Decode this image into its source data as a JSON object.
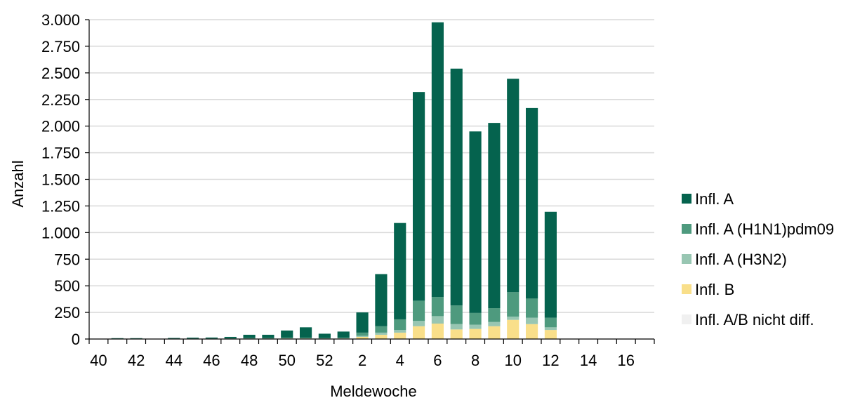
{
  "chart_data": {
    "type": "bar",
    "stacked": true,
    "title": "",
    "xlabel": "Meldewoche",
    "ylabel": "Anzahl",
    "ylim": [
      0,
      3000
    ],
    "yticks": [
      0,
      250,
      500,
      750,
      1000,
      1250,
      1500,
      1750,
      2000,
      2250,
      2500,
      2750,
      3000
    ],
    "ytick_labels": [
      "0",
      "250",
      "500",
      "750",
      "1.000",
      "1.250",
      "1.500",
      "1.750",
      "2.000",
      "2.250",
      "2.500",
      "2.750",
      "3.000"
    ],
    "grid": true,
    "legend_position": "right",
    "categories": [
      "40",
      "41",
      "42",
      "43",
      "44",
      "45",
      "46",
      "47",
      "48",
      "49",
      "50",
      "51",
      "52",
      "1",
      "2",
      "3",
      "4",
      "5",
      "6",
      "7",
      "8",
      "9",
      "10",
      "11",
      "12",
      "13",
      "14",
      "15",
      "16",
      "17"
    ],
    "xtick_labels": [
      "40",
      "",
      "42",
      "",
      "44",
      "",
      "46",
      "",
      "48",
      "",
      "50",
      "",
      "52",
      "",
      "2",
      "",
      "4",
      "",
      "6",
      "",
      "8",
      "",
      "10",
      "",
      "12",
      "",
      "14",
      "",
      "16",
      ""
    ],
    "series": [
      {
        "name": "Infl. A/B nicht diff.",
        "color": "#f0f0f0",
        "values": [
          0,
          0,
          0,
          0,
          0,
          0,
          0,
          0,
          0,
          0,
          0,
          0,
          0,
          0,
          0,
          0,
          0,
          0,
          0,
          0,
          0,
          0,
          0,
          0,
          0,
          0,
          0,
          0,
          0,
          0
        ]
      },
      {
        "name": "Infl. B",
        "color": "#f9df8a",
        "values": [
          0,
          2,
          2,
          0,
          2,
          2,
          2,
          3,
          4,
          4,
          5,
          5,
          4,
          5,
          20,
          40,
          60,
          120,
          145,
          90,
          95,
          120,
          180,
          140,
          85,
          0,
          0,
          0,
          0,
          0
        ]
      },
      {
        "name": "Infl. A (H3N2)",
        "color": "#98c6b2",
        "values": [
          0,
          1,
          1,
          0,
          1,
          1,
          1,
          1,
          1,
          1,
          2,
          2,
          2,
          2,
          10,
          20,
          25,
          50,
          70,
          50,
          40,
          40,
          30,
          60,
          25,
          0,
          0,
          0,
          0,
          0
        ]
      },
      {
        "name": "Infl. A (H1N1)pdm09",
        "color": "#4e9a7e",
        "values": [
          0,
          1,
          1,
          0,
          1,
          2,
          2,
          3,
          4,
          4,
          5,
          6,
          4,
          5,
          30,
          60,
          100,
          190,
          180,
          175,
          110,
          130,
          230,
          180,
          90,
          0,
          0,
          0,
          0,
          0
        ]
      },
      {
        "name": "Infl. A",
        "color": "#05634e",
        "values": [
          0,
          4,
          4,
          0,
          6,
          8,
          9,
          13,
          31,
          31,
          68,
          97,
          40,
          58,
          190,
          490,
          905,
          1960,
          2580,
          2225,
          1705,
          1740,
          2005,
          1790,
          995,
          0,
          0,
          0,
          0,
          0
        ]
      }
    ],
    "legend_order": [
      "Infl. A",
      "Infl. A (H1N1)pdm09",
      "Infl. A (H3N2)",
      "Infl. B",
      "Infl. A/B nicht diff."
    ]
  }
}
